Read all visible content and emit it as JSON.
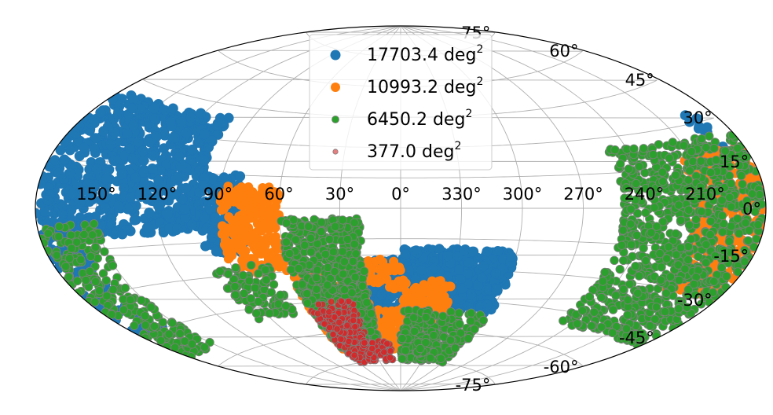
{
  "chart_data": {
    "type": "scatter",
    "projection": "aitoff",
    "title": "",
    "xlabel": "",
    "ylabel": "",
    "grid": true,
    "legend_position": "top-center",
    "unit": "deg",
    "lon_tick_labels": [
      "150°",
      "120°",
      "90°",
      "60°",
      "30°",
      "0°",
      "330°",
      "300°",
      "270°",
      "240°",
      "210°"
    ],
    "lon_tick_values": [
      150,
      120,
      90,
      60,
      30,
      0,
      330,
      300,
      270,
      240,
      210
    ],
    "lat_tick_labels": [
      "75°",
      "60°",
      "45°",
      "30°",
      "15°",
      "0°",
      "-15°",
      "-30°",
      "-45°",
      "-60°",
      "-75°"
    ],
    "lat_tick_values": [
      75,
      60,
      45,
      30,
      15,
      0,
      -15,
      -30,
      -45,
      -60,
      -75
    ],
    "series": [
      {
        "name": "17703.4",
        "color": "#1f77b4",
        "regions": [
          {
            "lon": [
              100,
              180
            ],
            "lat": [
              -10,
              40
            ],
            "density": 0.55
          },
          {
            "lon": [
              160,
              180
            ],
            "lat": [
              -45,
              -10
            ],
            "density": 0.4
          },
          {
            "lon": [
              80,
              100
            ],
            "lat": [
              -20,
              15
            ],
            "density": 0.5
          },
          {
            "lon": [
              300,
              360
            ],
            "lat": [
              -50,
              -20
            ],
            "density": 0.7
          },
          {
            "lon": [
              0,
              20
            ],
            "lat": [
              -55,
              -25
            ],
            "density": 0.6
          },
          {
            "lon": [
              190,
              200
            ],
            "lat": [
              20,
              35
            ],
            "density": 0.3
          }
        ]
      },
      {
        "name": "10993.2",
        "color": "#ff7f0e",
        "regions": [
          {
            "lon": [
              60,
              90
            ],
            "lat": [
              -30,
              10
            ],
            "density": 0.6
          },
          {
            "lon": [
              20,
              60
            ],
            "lat": [
              -70,
              -30
            ],
            "density": 0.6
          },
          {
            "lon": [
              0,
              30
            ],
            "lat": [
              -70,
              -50
            ],
            "density": 0.5
          },
          {
            "lon": [
              330,
              360
            ],
            "lat": [
              -70,
              -35
            ],
            "density": 0.5
          },
          {
            "lon": [
              181,
              215
            ],
            "lat": [
              -30,
              20
            ],
            "density": 0.7
          },
          {
            "lon": [
              0,
              20
            ],
            "lat": [
              -40,
              -25
            ],
            "density": 0.4
          }
        ]
      },
      {
        "name": "6450.2",
        "color": "#2ca02c",
        "regions": [
          {
            "lon": [
              20,
              60
            ],
            "lat": [
              -70,
              -5
            ],
            "density": 0.8
          },
          {
            "lon": [
              300,
              360
            ],
            "lat": [
              -75,
              -50
            ],
            "density": 0.6
          },
          {
            "lon": [
              181,
              250
            ],
            "lat": [
              -50,
              25
            ],
            "density": 0.55
          },
          {
            "lon": [
              150,
              180
            ],
            "lat": [
              -55,
              -5
            ],
            "density": 0.45
          },
          {
            "lon": [
              70,
              100
            ],
            "lat": [
              -50,
              -25
            ],
            "density": 0.4
          }
        ]
      },
      {
        "name": "377.0",
        "color": "#d62728",
        "regions": [
          {
            "lon": [
              30,
              60
            ],
            "lat": [
              -75,
              -45
            ],
            "density": 0.8
          },
          {
            "lon": [
              10,
              40
            ],
            "lat": [
              -75,
              -65
            ],
            "density": 0.6
          }
        ]
      }
    ]
  }
}
